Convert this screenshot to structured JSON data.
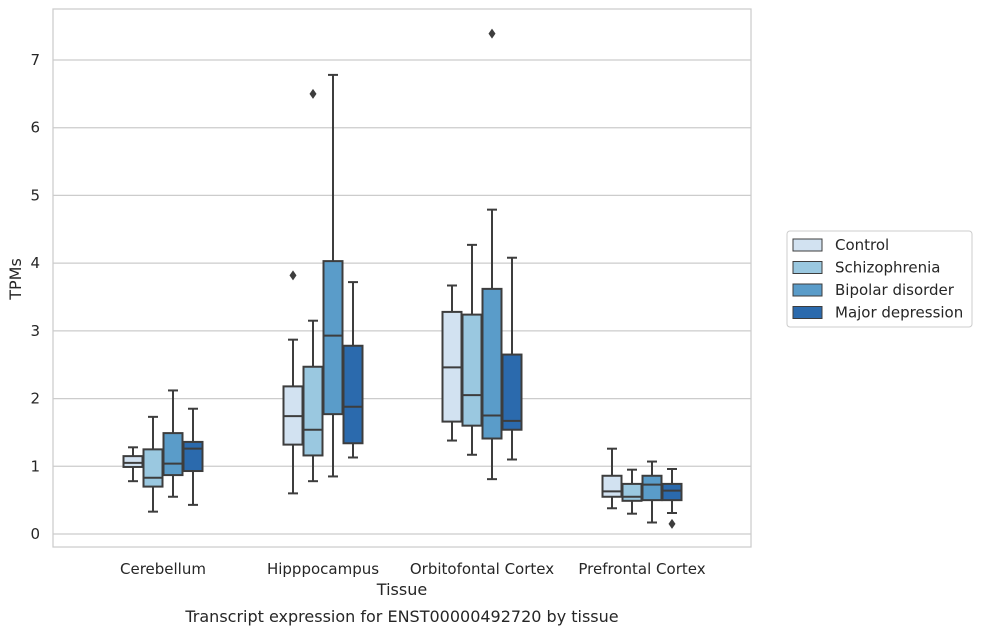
{
  "chart_data": {
    "type": "box",
    "title": "",
    "caption": "Transcript expression for ENST00000492720 by tissue",
    "xlabel": "Tissue",
    "ylabel": "TPMs",
    "ylim": [
      -0.2,
      7.75
    ],
    "yticks": [
      0,
      1,
      2,
      3,
      4,
      5,
      6,
      7
    ],
    "grid": "horizontal",
    "legend_position": "right",
    "categories": [
      "Cerebellum",
      "Hipppocampus",
      "Orbitofontal Cortex",
      "Prefrontal Cortex"
    ],
    "series": [
      {
        "name": "Control",
        "color": "#d2e2f1",
        "boxes": [
          {
            "whislo": 0.78,
            "q1": 0.99,
            "med": 1.05,
            "q3": 1.15,
            "whishi": 1.28,
            "fliers": []
          },
          {
            "whislo": 0.6,
            "q1": 1.32,
            "med": 1.74,
            "q3": 2.18,
            "whishi": 2.87,
            "fliers": [
              3.82
            ]
          },
          {
            "whislo": 1.38,
            "q1": 1.66,
            "med": 2.46,
            "q3": 3.28,
            "whishi": 3.67,
            "fliers": []
          },
          {
            "whislo": 0.38,
            "q1": 0.55,
            "med": 0.63,
            "q3": 0.86,
            "whishi": 1.26,
            "fliers": []
          }
        ]
      },
      {
        "name": "Schizophrenia",
        "color": "#9ac8e0",
        "boxes": [
          {
            "whislo": 0.33,
            "q1": 0.7,
            "med": 0.83,
            "q3": 1.25,
            "whishi": 1.73,
            "fliers": []
          },
          {
            "whislo": 0.78,
            "q1": 1.16,
            "med": 1.54,
            "q3": 2.47,
            "whishi": 3.15,
            "fliers": [
              6.5
            ]
          },
          {
            "whislo": 1.17,
            "q1": 1.6,
            "med": 2.05,
            "q3": 3.24,
            "whishi": 4.27,
            "fliers": []
          },
          {
            "whislo": 0.3,
            "q1": 0.49,
            "med": 0.55,
            "q3": 0.74,
            "whishi": 0.95,
            "fliers": []
          }
        ]
      },
      {
        "name": "Bipolar disorder",
        "color": "#5a9cc9",
        "boxes": [
          {
            "whislo": 0.55,
            "q1": 0.87,
            "med": 1.04,
            "q3": 1.49,
            "whishi": 2.12,
            "fliers": []
          },
          {
            "whislo": 0.85,
            "q1": 1.77,
            "med": 2.93,
            "q3": 4.03,
            "whishi": 6.78,
            "fliers": []
          },
          {
            "whislo": 0.81,
            "q1": 1.41,
            "med": 1.75,
            "q3": 3.62,
            "whishi": 4.79,
            "fliers": [
              7.39
            ]
          },
          {
            "whislo": 0.17,
            "q1": 0.5,
            "med": 0.73,
            "q3": 0.86,
            "whishi": 1.07,
            "fliers": []
          }
        ]
      },
      {
        "name": "Major depression",
        "color": "#2b6aad",
        "boxes": [
          {
            "whislo": 0.43,
            "q1": 0.93,
            "med": 1.26,
            "q3": 1.36,
            "whishi": 1.85,
            "fliers": []
          },
          {
            "whislo": 1.13,
            "q1": 1.34,
            "med": 1.88,
            "q3": 2.78,
            "whishi": 3.72,
            "fliers": []
          },
          {
            "whislo": 1.1,
            "q1": 1.54,
            "med": 1.67,
            "q3": 2.65,
            "whishi": 4.08,
            "fliers": []
          },
          {
            "whislo": 0.31,
            "q1": 0.5,
            "med": 0.64,
            "q3": 0.74,
            "whishi": 0.96,
            "fliers": [
              0.15
            ]
          }
        ]
      }
    ]
  }
}
